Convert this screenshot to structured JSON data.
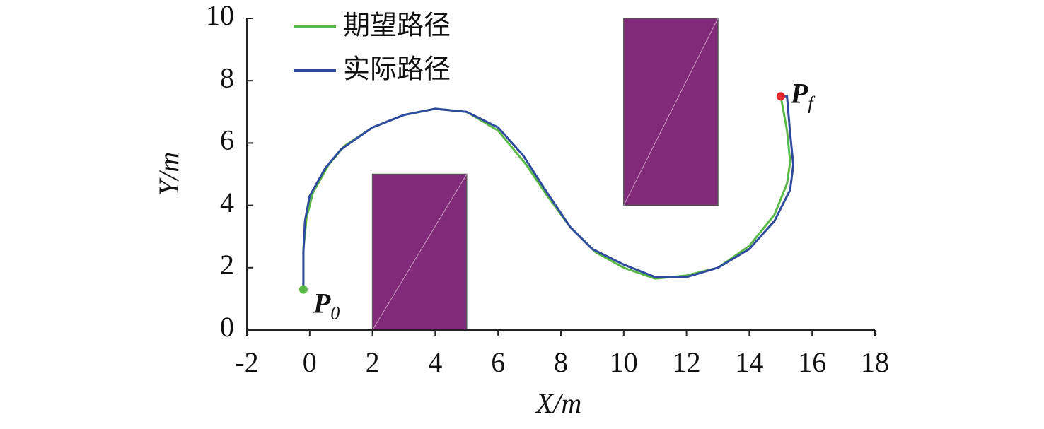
{
  "chart_data": {
    "type": "line",
    "xlabel": "X/m",
    "ylabel": "Y/m",
    "xlim": [
      -2,
      18
    ],
    "xticks": [
      -2,
      0,
      2,
      4,
      6,
      8,
      10,
      12,
      14,
      16,
      18
    ],
    "ylim": [
      0,
      10
    ],
    "yticks": [
      0,
      2,
      4,
      6,
      8,
      10
    ],
    "series": [
      {
        "name": "期望路径",
        "color": "#5ab946",
        "x": [
          -0.2,
          -0.2,
          -0.1,
          0.1,
          0.6,
          1.1,
          2,
          3,
          4,
          5,
          6,
          6.9,
          7.5,
          8.3,
          9.1,
          10,
          11,
          12,
          13,
          14,
          14.8,
          15.2,
          15.3,
          15.2,
          15.0
        ],
        "values": [
          1.3,
          2.6,
          3.6,
          4.4,
          5.3,
          5.9,
          6.5,
          6.9,
          7.1,
          7.0,
          6.4,
          5.3,
          4.4,
          3.3,
          2.5,
          2.0,
          1.65,
          1.75,
          2.0,
          2.7,
          3.7,
          4.7,
          5.4,
          6.4,
          7.5
        ]
      },
      {
        "name": "实际路径",
        "color": "#2e4a9e",
        "x": [
          -0.2,
          -0.2,
          -0.15,
          0,
          0.5,
          1,
          2,
          3,
          4,
          5,
          6,
          6.8,
          7.5,
          8.3,
          9,
          10,
          11,
          12,
          13,
          14,
          14.8,
          15.3,
          15.4,
          15.3,
          15.2,
          15.0
        ],
        "values": [
          1.3,
          2.5,
          3.5,
          4.3,
          5.2,
          5.8,
          6.5,
          6.9,
          7.1,
          7.0,
          6.5,
          5.6,
          4.5,
          3.3,
          2.6,
          2.1,
          1.7,
          1.7,
          2.0,
          2.6,
          3.5,
          4.5,
          5.3,
          6.3,
          7.5,
          7.5
        ]
      }
    ],
    "obstacles": [
      {
        "x": [
          2,
          5
        ],
        "y": [
          0,
          5
        ],
        "color": "#822a7a"
      },
      {
        "x": [
          10,
          13
        ],
        "y": [
          4,
          10
        ],
        "color": "#822a7a"
      }
    ],
    "points": [
      {
        "label": "P",
        "sub": "0",
        "x": -0.2,
        "y": 1.3,
        "color": "#5ab946"
      },
      {
        "label": "P",
        "sub": "f",
        "x": 15.0,
        "y": 7.5,
        "color": "#e0262b"
      }
    ]
  }
}
